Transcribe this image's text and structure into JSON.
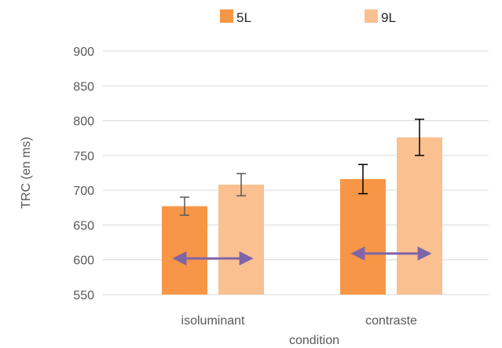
{
  "chart_data": {
    "type": "bar",
    "title": "",
    "xlabel": "condition",
    "ylabel": "TRC (en ms)",
    "categories": [
      "isoluminant",
      "contraste"
    ],
    "series": [
      {
        "name": "5L",
        "values": [
          677,
          716
        ],
        "error": [
          13,
          21
        ],
        "color": "#F79646"
      },
      {
        "name": "9L",
        "values": [
          708,
          776
        ],
        "error": [
          16,
          26
        ],
        "color": "#FAC090"
      }
    ],
    "ylim": [
      550,
      900
    ],
    "yticks": [
      550,
      600,
      650,
      700,
      750,
      800,
      850,
      900
    ],
    "grid": true,
    "legend_position": "top",
    "annotations": [
      {
        "type": "double-arrow",
        "category": "isoluminant",
        "y": 602,
        "color": "#7F64A8"
      },
      {
        "type": "double-arrow",
        "category": "contraste",
        "y": 609,
        "color": "#7F64A8"
      }
    ]
  }
}
